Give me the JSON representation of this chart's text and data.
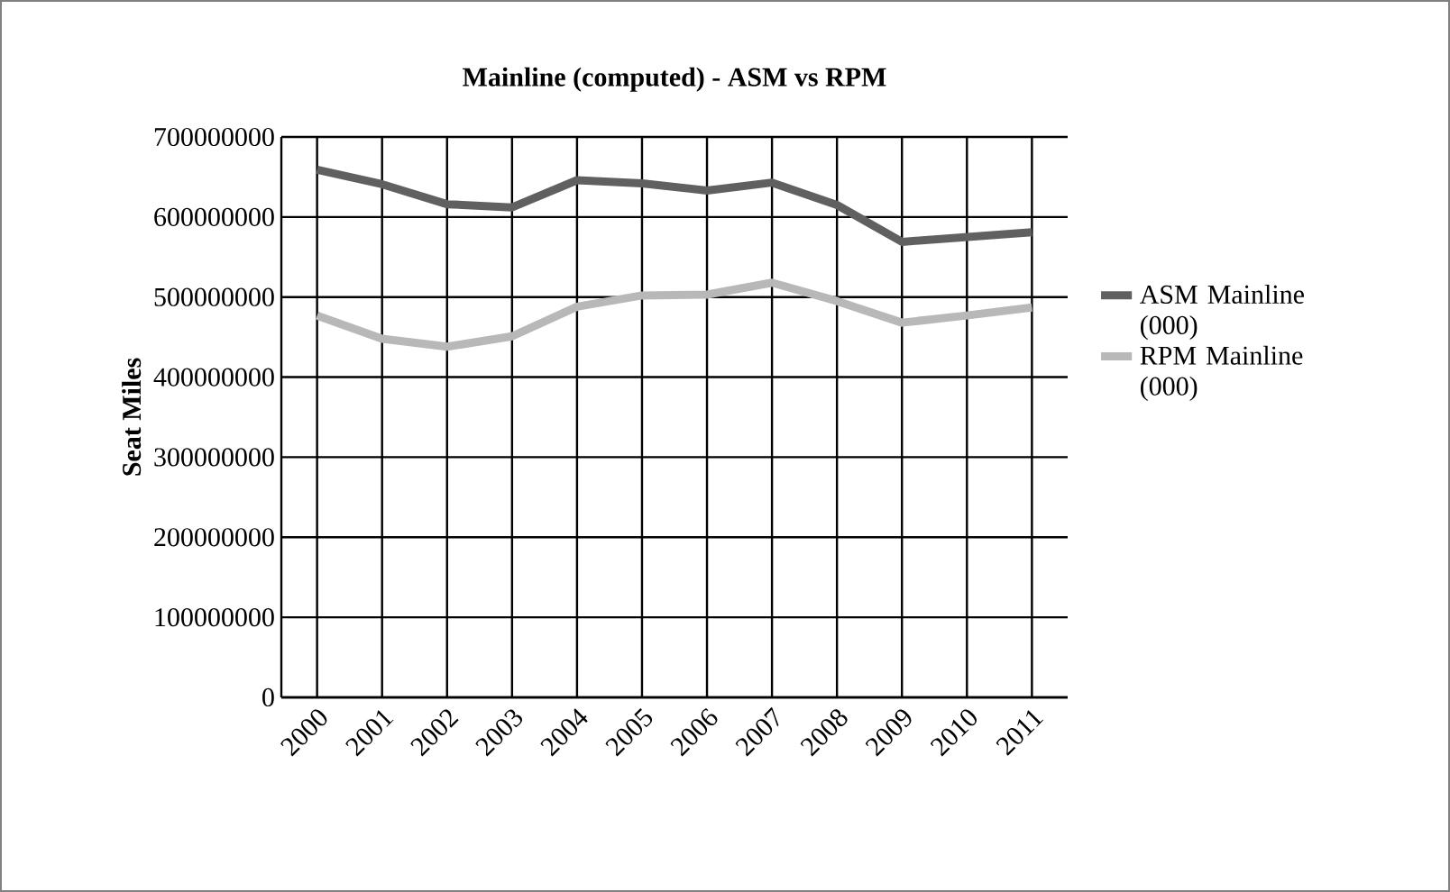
{
  "chart_data": {
    "type": "line",
    "title": "Mainline (computed) - ASM vs RPM",
    "ylabel": "Seat Miles",
    "categories": [
      "2000",
      "2001",
      "2002",
      "2003",
      "2004",
      "2005",
      "2006",
      "2007",
      "2008",
      "2009",
      "2010",
      "2011"
    ],
    "series": [
      {
        "name": "ASM Mainline (000)",
        "color": "#606060",
        "values": [
          659000000,
          641000000,
          616000000,
          612000000,
          646000000,
          642000000,
          633000000,
          643000000,
          615000000,
          569000000,
          575000000,
          581000000
        ]
      },
      {
        "name": "RPM Mainline (000)",
        "color": "#b8b8b8",
        "values": [
          477000000,
          448000000,
          438000000,
          451000000,
          488000000,
          502000000,
          503000000,
          518000000,
          495000000,
          468000000,
          477000000,
          487000000
        ]
      }
    ],
    "ylim": [
      0,
      700000000
    ],
    "yticks": [
      0,
      100000000,
      200000000,
      300000000,
      400000000,
      500000000,
      600000000,
      700000000
    ],
    "grid": true,
    "legend": "right",
    "marker": "none",
    "line_style": "solid"
  }
}
